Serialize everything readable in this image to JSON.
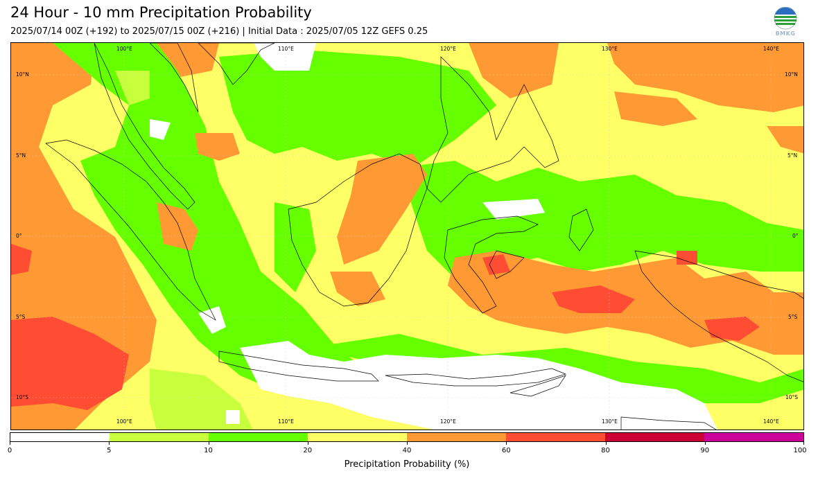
{
  "header": {
    "title": "24 Hour - 10 mm Precipitation Probability",
    "subtitle": "2025/07/14 00Z (+192) to 2025/07/15 00Z (+216) | Initial Data : 2025/07/05 12Z GEFS 0.25"
  },
  "logo": {
    "text": "BMKG"
  },
  "map": {
    "lon_labels": [
      "100°E",
      "110°E",
      "120°E",
      "130°E",
      "140°E"
    ],
    "lat_labels": [
      "10°N",
      "5°N",
      "0°",
      "5°S",
      "10°S"
    ]
  },
  "colorbar": {
    "title": "Precipitation Probability (%)",
    "ticks": [
      "0",
      "5",
      "10",
      "20",
      "40",
      "60",
      "80",
      "90",
      "100"
    ],
    "colors": [
      "#ffffff",
      "#c8ff3c",
      "#66ff00",
      "#ffff66",
      "#ff9933",
      "#ff4d33",
      "#cc0033",
      "#cc0099"
    ]
  },
  "colors": {
    "ocean_base": "#ffff66",
    "low": "#c8ff3c",
    "mid": "#66ff00",
    "high": "#ff9933",
    "very_high": "#ff4d33"
  }
}
